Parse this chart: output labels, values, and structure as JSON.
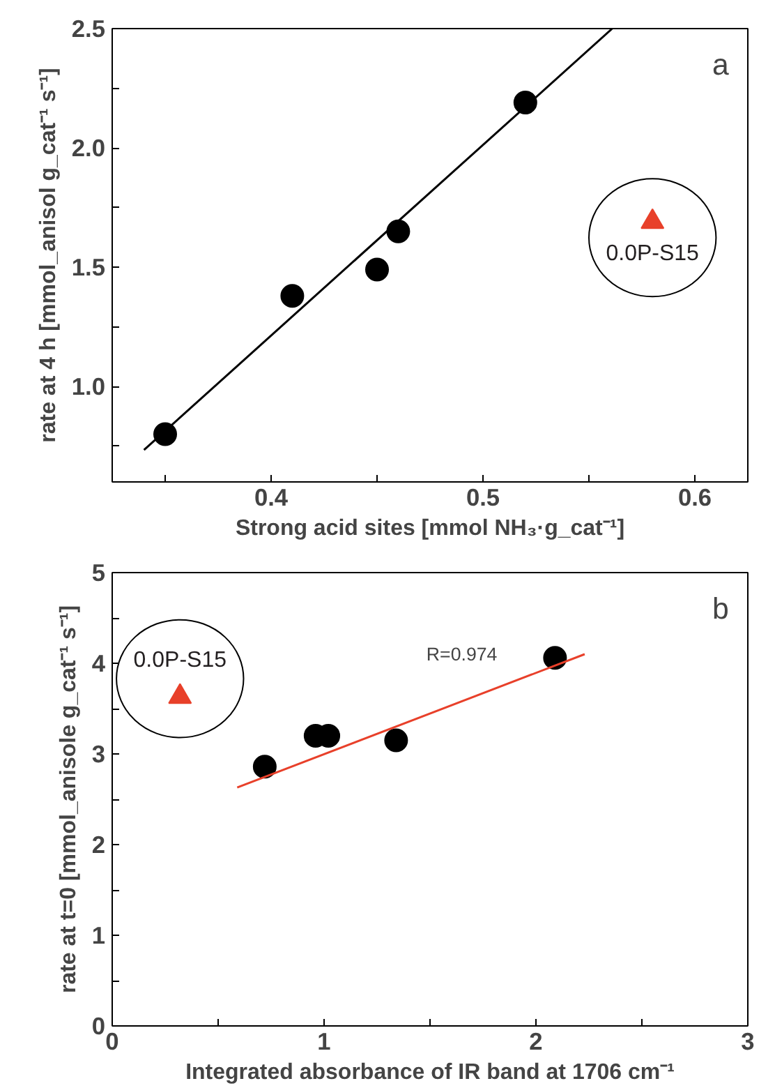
{
  "chart_data": [
    {
      "type": "scatter",
      "xlabel": "Strong acid sites [mmol NH₃·g_cat⁻¹]",
      "ylabel": "rate at 4 h [mmol_anisol g_cat⁻¹ s⁻¹]",
      "xlim": [
        0.325,
        0.625
      ],
      "ylim": [
        0.6,
        2.5
      ],
      "xticks": [
        {
          "value": 0.35,
          "label": null
        },
        {
          "value": 0.4,
          "label": "0.4"
        },
        {
          "value": 0.45,
          "label": null
        },
        {
          "value": 0.5,
          "label": "0.5"
        },
        {
          "value": 0.55,
          "label": null
        },
        {
          "value": 0.6,
          "label": "0.6"
        }
      ],
      "yticks": [
        {
          "value": 0.75,
          "label": null
        },
        {
          "value": 1.0,
          "label": "1.0"
        },
        {
          "value": 1.25,
          "label": null
        },
        {
          "value": 1.5,
          "label": "1.5"
        },
        {
          "value": 1.75,
          "label": null
        },
        {
          "value": 2.0,
          "label": "2.0"
        },
        {
          "value": 2.25,
          "label": null
        },
        {
          "value": 2.5,
          "label": "2.5"
        }
      ],
      "grid": false,
      "series": [
        {
          "marker": "circle",
          "color": "#000000",
          "x": [
            0.35,
            0.41,
            0.45,
            0.46,
            0.52
          ],
          "values": [
            0.8,
            1.38,
            1.49,
            1.65,
            2.19
          ]
        },
        {
          "type": "line",
          "color": "#000000",
          "x": [
            0.34,
            0.561
          ],
          "values": [
            0.734,
            2.5
          ]
        },
        {
          "marker": "triangle",
          "name": "0.0P-S15",
          "color": "#e8402a",
          "x": [
            0.58
          ],
          "values": [
            1.69
          ]
        }
      ],
      "annotations": [
        "a"
      ]
    },
    {
      "type": "scatter",
      "xlabel": "Integrated absorbance of IR band at 1706 cm⁻¹",
      "ylabel": "rate at t=0 [mmol_anisole g_cat⁻¹ s⁻¹]",
      "xlim": [
        0,
        3
      ],
      "ylim": [
        0,
        5
      ],
      "xticks": [
        0,
        {
          "value": 0.5,
          "label": null
        },
        1,
        {
          "value": 1.5,
          "label": null
        },
        2,
        {
          "value": 2.5,
          "label": null
        },
        3
      ],
      "yticks": [
        0,
        {
          "value": 0.5,
          "label": null
        },
        1,
        {
          "value": 1.5,
          "label": null
        },
        2,
        {
          "value": 2.5,
          "label": null
        },
        3,
        {
          "value": 3.5,
          "label": null
        },
        4,
        {
          "value": 4.5,
          "label": null
        },
        5
      ],
      "grid": false,
      "series": [
        {
          "marker": "circle",
          "color": "#000000",
          "x": [
            0.72,
            0.96,
            1.02,
            1.34,
            2.09
          ],
          "values": [
            2.86,
            3.2,
            3.2,
            3.15,
            4.06
          ]
        },
        {
          "type": "line",
          "color": "#e8402a",
          "x": [
            0.59,
            2.23
          ],
          "values": [
            2.63,
            4.1
          ]
        },
        {
          "marker": "triangle",
          "name": "0.0P-S15",
          "color": "#e8402a",
          "x": [
            0.32
          ],
          "values": [
            3.63
          ]
        }
      ],
      "annotations": [
        "b",
        "R=0.974"
      ]
    }
  ]
}
